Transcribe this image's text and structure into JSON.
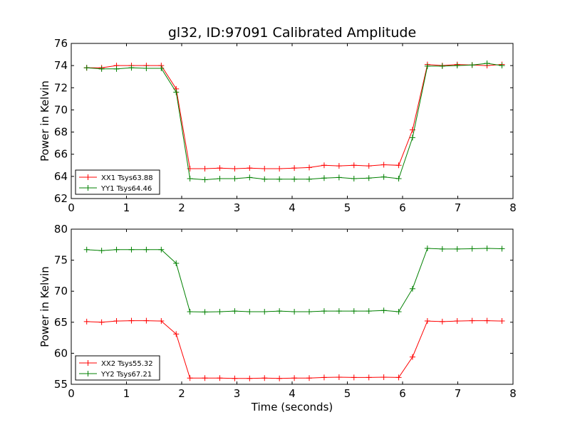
{
  "title": "gl32, ID:97091 Calibrated Amplitude",
  "chart_data": [
    {
      "type": "line",
      "ylabel": "Power in Kelvin",
      "xlabel": "",
      "xlim": [
        0,
        8
      ],
      "ylim": [
        62,
        76
      ],
      "xticks": [
        0,
        1,
        2,
        3,
        4,
        5,
        6,
        7,
        8
      ],
      "yticks": [
        62,
        64,
        66,
        68,
        70,
        72,
        74,
        76
      ],
      "legend_position": "lower-left",
      "x": [
        0.28,
        0.55,
        0.82,
        1.09,
        1.36,
        1.63,
        1.9,
        2.15,
        2.42,
        2.69,
        2.96,
        3.23,
        3.5,
        3.77,
        4.04,
        4.31,
        4.58,
        4.85,
        5.12,
        5.39,
        5.66,
        5.93,
        6.18,
        6.45,
        6.72,
        6.99,
        7.26,
        7.53,
        7.8
      ],
      "series": [
        {
          "name": "XX1 Tsys63.88",
          "color": "#ff0000",
          "values": [
            73.8,
            73.8,
            74.0,
            74.0,
            74.0,
            74.0,
            71.9,
            64.7,
            64.7,
            64.75,
            64.7,
            64.75,
            64.7,
            64.7,
            64.75,
            64.8,
            65.0,
            64.95,
            65.0,
            64.95,
            65.05,
            65.0,
            68.2,
            74.1,
            74.0,
            74.1,
            74.05,
            74.0,
            74.1
          ]
        },
        {
          "name": "YY1 Tsys64.46",
          "color": "#008000",
          "values": [
            73.8,
            73.7,
            73.7,
            73.8,
            73.75,
            73.75,
            71.6,
            63.8,
            63.7,
            63.8,
            63.8,
            63.9,
            63.75,
            63.75,
            63.75,
            63.75,
            63.85,
            63.9,
            63.8,
            63.85,
            63.95,
            63.8,
            67.5,
            73.95,
            73.95,
            74.0,
            74.05,
            74.2,
            74.0
          ]
        }
      ]
    },
    {
      "type": "line",
      "ylabel": "Power in Kelvin",
      "xlabel": "Time (seconds)",
      "xlim": [
        0,
        8
      ],
      "ylim": [
        55,
        80
      ],
      "xticks": [
        0,
        1,
        2,
        3,
        4,
        5,
        6,
        7,
        8
      ],
      "yticks": [
        55,
        60,
        65,
        70,
        75,
        80
      ],
      "legend_position": "lower-left",
      "x": [
        0.28,
        0.55,
        0.82,
        1.09,
        1.36,
        1.63,
        1.9,
        2.15,
        2.42,
        2.69,
        2.96,
        3.23,
        3.5,
        3.77,
        4.04,
        4.31,
        4.58,
        4.85,
        5.12,
        5.39,
        5.66,
        5.93,
        6.18,
        6.45,
        6.72,
        6.99,
        7.26,
        7.53,
        7.8
      ],
      "series": [
        {
          "name": "XX2 Tsys55.32",
          "color": "#ff0000",
          "values": [
            65.1,
            65.0,
            65.2,
            65.25,
            65.25,
            65.2,
            63.1,
            56.0,
            56.0,
            56.0,
            55.95,
            55.95,
            56.0,
            55.95,
            56.0,
            56.0,
            56.1,
            56.15,
            56.1,
            56.1,
            56.15,
            56.1,
            59.4,
            65.2,
            65.1,
            65.2,
            65.25,
            65.25,
            65.2
          ]
        },
        {
          "name": "YY2 Tsys67.21",
          "color": "#008000",
          "values": [
            76.7,
            76.55,
            76.7,
            76.7,
            76.7,
            76.7,
            74.5,
            66.7,
            66.65,
            66.7,
            66.8,
            66.7,
            66.7,
            66.8,
            66.7,
            66.7,
            66.8,
            66.8,
            66.8,
            66.8,
            66.9,
            66.7,
            70.4,
            76.9,
            76.8,
            76.8,
            76.85,
            76.9,
            76.85
          ]
        }
      ]
    }
  ]
}
